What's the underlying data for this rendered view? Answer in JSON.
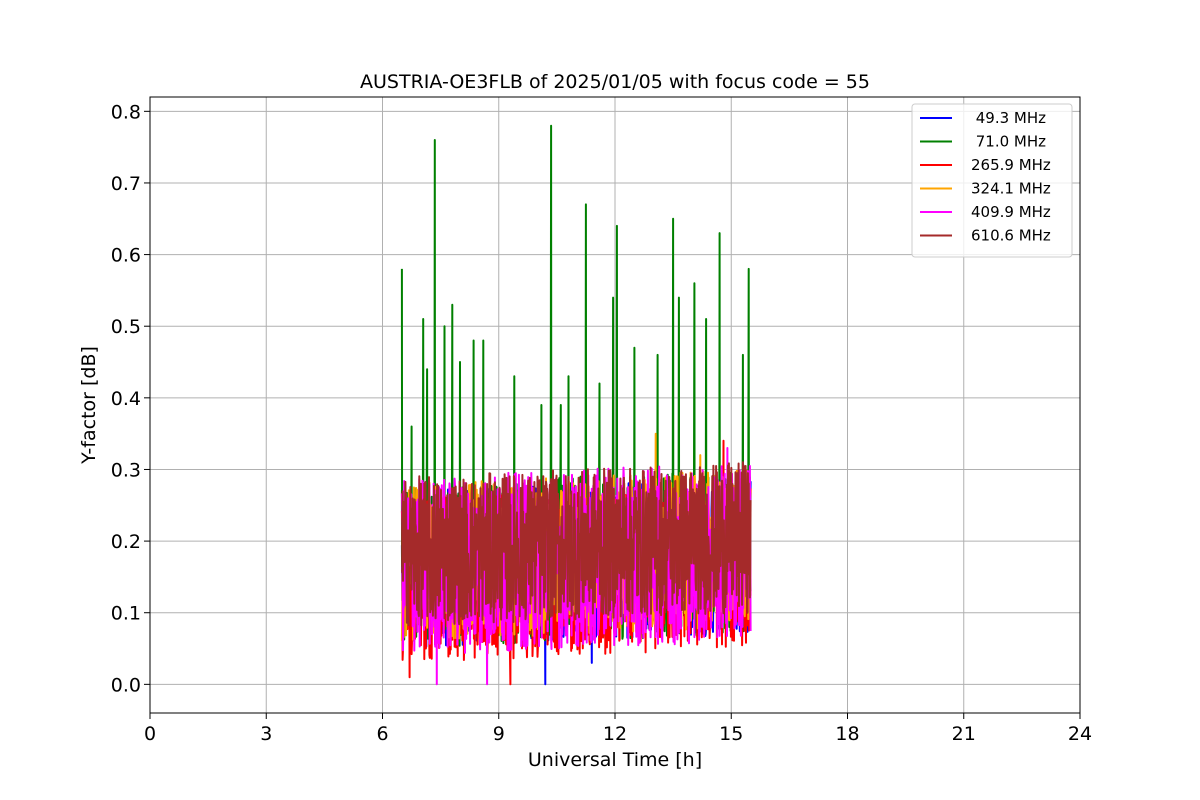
{
  "chart_data": {
    "type": "line",
    "title": "AUSTRIA-OE3FLB of 2025/01/05 with focus code = 55",
    "xlabel": "Universal Time [h]",
    "ylabel": "Y-factor [dB]",
    "xlim": [
      0,
      24
    ],
    "ylim": [
      -0.04,
      0.82
    ],
    "xticks": [
      0,
      3,
      6,
      9,
      12,
      15,
      18,
      21,
      24
    ],
    "xtick_labels": [
      "0",
      "3",
      "6",
      "9",
      "12",
      "15",
      "18",
      "21",
      "24"
    ],
    "yticks": [
      0.0,
      0.1,
      0.2,
      0.3,
      0.4,
      0.5,
      0.6,
      0.7,
      0.8
    ],
    "ytick_labels": [
      "0.0",
      "0.1",
      "0.2",
      "0.3",
      "0.4",
      "0.5",
      "0.6",
      "0.7",
      "0.8"
    ],
    "grid": true,
    "legend_position": "top-right",
    "data_time_range": [
      6.5,
      15.5
    ],
    "series": [
      {
        "name": " 49.3 MHz",
        "color": "#0000ff",
        "band": [
          0.05,
          0.27
        ],
        "peaks": [
          [
            6.7,
            0.27
          ],
          [
            8.2,
            0.27
          ],
          [
            10.2,
            0.0
          ],
          [
            11.4,
            0.03
          ]
        ]
      },
      {
        "name": " 71.0 MHz",
        "color": "#008000",
        "band": [
          0.05,
          0.28
        ],
        "peaks": [
          [
            6.5,
            0.58
          ],
          [
            6.75,
            0.36
          ],
          [
            7.05,
            0.51
          ],
          [
            7.15,
            0.44
          ],
          [
            7.35,
            0.76
          ],
          [
            7.6,
            0.5
          ],
          [
            7.8,
            0.53
          ],
          [
            8.0,
            0.45
          ],
          [
            8.35,
            0.48
          ],
          [
            8.6,
            0.48
          ],
          [
            9.4,
            0.43
          ],
          [
            10.1,
            0.39
          ],
          [
            10.35,
            0.78
          ],
          [
            10.6,
            0.39
          ],
          [
            10.8,
            0.43
          ],
          [
            11.25,
            0.67
          ],
          [
            11.6,
            0.42
          ],
          [
            11.95,
            0.54
          ],
          [
            12.05,
            0.64
          ],
          [
            12.5,
            0.47
          ],
          [
            13.1,
            0.46
          ],
          [
            13.5,
            0.65
          ],
          [
            13.65,
            0.54
          ],
          [
            14.05,
            0.56
          ],
          [
            14.35,
            0.51
          ],
          [
            14.7,
            0.63
          ],
          [
            15.3,
            0.46
          ],
          [
            15.45,
            0.58
          ]
        ]
      },
      {
        "name": "265.9 MHz",
        "color": "#ff0000",
        "band": [
          0.03,
          0.26
        ],
        "peaks": [
          [
            6.7,
            0.01
          ],
          [
            9.3,
            0.0
          ],
          [
            14.8,
            0.34
          ]
        ]
      },
      {
        "name": "324.1 MHz",
        "color": "#ffa500",
        "band": [
          0.06,
          0.28
        ],
        "peaks": [
          [
            13.05,
            0.35
          ],
          [
            14.2,
            0.32
          ]
        ]
      },
      {
        "name": "409.9 MHz",
        "color": "#ff00ff",
        "band": [
          0.04,
          0.29
        ],
        "peaks": [
          [
            7.4,
            0.0
          ],
          [
            8.7,
            0.0
          ],
          [
            14.9,
            0.33
          ]
        ]
      },
      {
        "name": "610.6 MHz",
        "color": "#a52a2a",
        "band": [
          0.08,
          0.29
        ],
        "peaks": [
          [
            15.3,
            0.31
          ]
        ]
      }
    ]
  }
}
